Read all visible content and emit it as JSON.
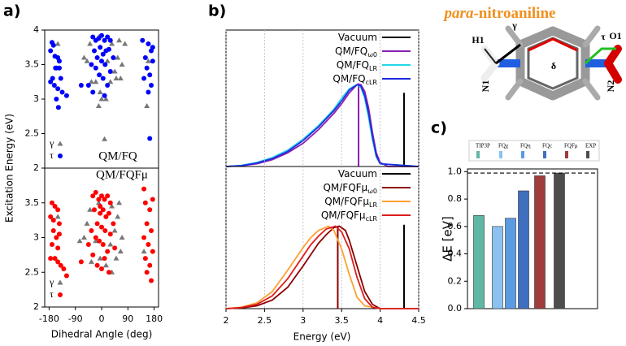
{
  "chart_data": [
    {
      "type": "scatter",
      "label": "a)",
      "ylabel": "Excitation Energy (eV)",
      "annotation": "QM/FQ",
      "annotation_color": "#0000ff",
      "xlim": [
        -195,
        195
      ],
      "ylim": [
        2,
        4
      ],
      "yticks": [
        2,
        2.5,
        3,
        3.5,
        4
      ],
      "legend": "lower left",
      "series": [
        {
          "name": "γ",
          "marker": "triangle",
          "color": "#777777",
          "x": [
            -10,
            35,
            60,
            80,
            55,
            70,
            45,
            -40,
            -50,
            -20,
            30,
            50,
            -5,
            15,
            -35,
            -10,
            10,
            0,
            -60,
            65,
            155,
            160,
            -150,
            20
          ],
          "values": [
            3.9,
            3.8,
            3.85,
            3.8,
            3.6,
            3.5,
            3.4,
            3.8,
            3.55,
            3.25,
            3.25,
            3.3,
            3.1,
            3.0,
            3.25,
            2.9,
            2.42,
            3.0,
            3.6,
            3.3,
            2.9,
            3.55,
            3.8,
            3.55
          ]
        },
        {
          "name": "τ",
          "marker": "circle",
          "color": "#0000ff",
          "x": [
            -170,
            -165,
            -160,
            -175,
            -150,
            -145,
            -155,
            -168,
            -162,
            -150,
            -140,
            -175,
            -155,
            -148,
            -135,
            -120,
            -158,
            -145,
            -30,
            -20,
            -10,
            0,
            10,
            20,
            30,
            -25,
            -5,
            5,
            15,
            25,
            -15,
            0,
            12,
            -20,
            30,
            -8,
            5,
            -35,
            40,
            -45,
            -70,
            20,
            -30,
            10,
            140,
            160,
            170,
            150,
            175,
            155,
            165,
            145,
            170,
            160,
            175,
            165
          ],
          "values": [
            3.82,
            3.78,
            3.62,
            3.7,
            3.6,
            3.45,
            3.45,
            3.3,
            3.2,
            3.15,
            3.3,
            3.25,
            3.0,
            2.88,
            3.1,
            3.05,
            3.45,
            3.55,
            3.9,
            3.85,
            3.88,
            3.92,
            3.85,
            3.9,
            3.85,
            3.7,
            3.75,
            3.65,
            3.7,
            3.72,
            3.6,
            3.55,
            3.5,
            3.45,
            3.4,
            3.35,
            3.3,
            3.5,
            3.6,
            3.2,
            3.2,
            3.2,
            3.1,
            3.05,
            3.85,
            3.8,
            3.7,
            3.6,
            3.55,
            3.45,
            3.35,
            3.3,
            3.2,
            3.1,
            3.75,
            2.43
          ]
        }
      ]
    },
    {
      "type": "scatter",
      "xlabel": "Dihedral Angle (deg)",
      "annotation": "QM/FQFμ",
      "annotation_color": "#ff0000",
      "xlim": [
        -195,
        195
      ],
      "xticks": [
        -180,
        -90,
        0,
        90,
        180
      ],
      "ylim": [
        2,
        4
      ],
      "yticks": [
        2,
        2.5,
        3,
        3.5
      ],
      "legend": "lower left",
      "series": [
        {
          "name": "γ",
          "marker": "triangle",
          "color": "#777777",
          "x": [
            -10,
            35,
            60,
            55,
            70,
            45,
            -40,
            -50,
            -20,
            30,
            50,
            -5,
            15,
            -35,
            -60,
            65,
            -75,
            35,
            145,
            -150
          ],
          "values": [
            3.5,
            3.45,
            3.5,
            3.3,
            3.0,
            3.1,
            3.4,
            3.2,
            2.95,
            2.9,
            2.7,
            2.7,
            2.6,
            2.65,
            3.0,
            2.8,
            2.95,
            2.5,
            2.8,
            3.3
          ]
        },
        {
          "name": "τ",
          "marker": "circle",
          "color": "#ff0000",
          "x": [
            -170,
            -160,
            -175,
            -150,
            -165,
            -155,
            -145,
            -170,
            -160,
            -150,
            -140,
            -130,
            -175,
            -150,
            -120,
            -145,
            -165,
            -30,
            -20,
            -10,
            0,
            10,
            20,
            30,
            -25,
            -5,
            5,
            15,
            25,
            -15,
            0,
            12,
            -20,
            30,
            -8,
            5,
            -35,
            40,
            -45,
            20,
            -30,
            10,
            0,
            -15,
            25,
            -70,
            45,
            -5,
            150,
            165,
            175,
            155,
            170,
            145,
            160,
            175,
            150,
            165,
            155,
            170,
            145
          ],
          "values": [
            3.5,
            3.45,
            3.3,
            3.4,
            3.1,
            3.0,
            3.05,
            2.9,
            2.7,
            2.65,
            2.6,
            2.55,
            2.7,
            2.85,
            2.45,
            3.2,
            3.25,
            3.6,
            3.65,
            3.55,
            3.6,
            3.55,
            3.6,
            3.5,
            3.4,
            3.35,
            3.4,
            3.3,
            3.35,
            3.2,
            3.15,
            3.1,
            3.0,
            3.05,
            2.95,
            2.9,
            3.1,
            3.2,
            2.9,
            2.8,
            2.75,
            2.7,
            2.55,
            2.6,
            2.5,
            2.65,
            2.85,
            3.45,
            3.5,
            3.4,
            3.55,
            3.2,
            3.1,
            3.0,
            2.9,
            2.8,
            2.7,
            2.6,
            2.5,
            2.38,
            3.7
          ]
        }
      ]
    },
    {
      "type": "line",
      "label": "b)",
      "xlim": [
        2,
        4.5
      ],
      "ylim": [
        0,
        1
      ],
      "grid": true,
      "series": [
        {
          "name": "Vacuum",
          "color": "#000000",
          "stick": {
            "x": 4.31,
            "value": 0.54
          }
        },
        {
          "name": "QM/FQ",
          "name_sub": "ω0",
          "color": "#8b1fb0",
          "x": [
            2.0,
            2.2,
            2.4,
            2.6,
            2.8,
            3.0,
            3.2,
            3.4,
            3.5,
            3.6,
            3.7,
            3.75,
            3.8,
            3.85,
            3.9,
            3.95,
            4.0,
            4.1,
            4.5
          ],
          "values": [
            0,
            0.005,
            0.02,
            0.05,
            0.1,
            0.17,
            0.27,
            0.39,
            0.46,
            0.54,
            0.6,
            0.6,
            0.55,
            0.43,
            0.25,
            0.1,
            0.03,
            0,
            0
          ],
          "stick": {
            "x": 3.72,
            "value": 0.61
          }
        },
        {
          "name": "QM/FQ",
          "name_sub": "LR",
          "color": "#22d8e8",
          "x": [
            2.0,
            2.2,
            2.4,
            2.6,
            2.8,
            3.0,
            3.2,
            3.4,
            3.5,
            3.6,
            3.7,
            3.75,
            3.8,
            3.85,
            3.9,
            3.95,
            4.0,
            4.5
          ],
          "values": [
            0,
            0.008,
            0.03,
            0.065,
            0.12,
            0.2,
            0.3,
            0.42,
            0.5,
            0.57,
            0.6,
            0.58,
            0.5,
            0.36,
            0.2,
            0.07,
            0.02,
            0
          ]
        },
        {
          "name": "QM/FQ",
          "name_sub": "cLR",
          "color": "#1f2be0",
          "x": [
            2.0,
            2.2,
            2.4,
            2.6,
            2.8,
            3.0,
            3.2,
            3.4,
            3.5,
            3.6,
            3.7,
            3.75,
            3.8,
            3.85,
            3.9,
            3.95,
            4.0,
            4.5
          ],
          "values": [
            0,
            0.006,
            0.025,
            0.058,
            0.11,
            0.19,
            0.29,
            0.41,
            0.48,
            0.56,
            0.6,
            0.59,
            0.52,
            0.39,
            0.22,
            0.08,
            0.02,
            0
          ]
        }
      ]
    },
    {
      "type": "line",
      "xlabel": "Energy (eV)",
      "xlim": [
        2,
        4.5
      ],
      "xticks": [
        2,
        2.5,
        3,
        3.5,
        4,
        4.5
      ],
      "ylim": [
        0,
        1
      ],
      "grid": true,
      "series": [
        {
          "name": "Vacuum",
          "color": "#000000",
          "stick": {
            "x": 4.31,
            "value": 0.59
          }
        },
        {
          "name": "QM/FQFμ",
          "name_sub": "ω0",
          "color": "#8b0000",
          "x": [
            2.0,
            2.2,
            2.4,
            2.6,
            2.8,
            3.0,
            3.1,
            3.2,
            3.3,
            3.4,
            3.47,
            3.55,
            3.6,
            3.7,
            3.8,
            3.9,
            4.0,
            4.5
          ],
          "values": [
            0,
            0.005,
            0.02,
            0.06,
            0.15,
            0.3,
            0.38,
            0.46,
            0.52,
            0.57,
            0.58,
            0.55,
            0.48,
            0.3,
            0.12,
            0.03,
            0,
            0
          ],
          "stick": {
            "x": 3.45,
            "value": 0.58
          }
        },
        {
          "name": "QM/FQFμ",
          "name_sub": "LR",
          "color": "#ffa030",
          "x": [
            2.0,
            2.2,
            2.4,
            2.6,
            2.8,
            3.0,
            3.1,
            3.2,
            3.33,
            3.4,
            3.5,
            3.6,
            3.7,
            3.8,
            4.0,
            4.5
          ],
          "values": [
            0,
            0.01,
            0.04,
            0.12,
            0.27,
            0.43,
            0.5,
            0.55,
            0.58,
            0.55,
            0.42,
            0.24,
            0.08,
            0.02,
            0,
            0
          ]
        },
        {
          "name": "QM/FQFμ",
          "name_sub": "cLR",
          "color": "#dd1c1c",
          "x": [
            2.0,
            2.2,
            2.4,
            2.6,
            2.8,
            3.0,
            3.1,
            3.2,
            3.3,
            3.42,
            3.5,
            3.6,
            3.7,
            3.8,
            3.9,
            4.0,
            4.5
          ],
          "values": [
            0,
            0.008,
            0.03,
            0.09,
            0.21,
            0.37,
            0.45,
            0.51,
            0.56,
            0.58,
            0.54,
            0.42,
            0.22,
            0.07,
            0.01,
            0,
            0
          ]
        }
      ]
    },
    {
      "type": "bar",
      "label": "c)",
      "ylabel": "ΔE [eV]",
      "categories": [
        "TIP3P",
        "FQχ",
        "FQη",
        "FQc",
        "FQFμ",
        "EXP"
      ],
      "values": [
        0.68,
        0.6,
        0.66,
        0.86,
        0.97,
        0.99
      ],
      "colors": [
        "#5fb8a4",
        "#8cc2f2",
        "#5b9be2",
        "#3f6fbf",
        "#a03c3c",
        "#4d4d4d"
      ],
      "ylim": [
        0,
        1.02
      ],
      "yticks": [
        {
          "value": 0,
          "label": "0.0"
        },
        {
          "value": 0.2,
          "label": "0.2"
        },
        {
          "value": 0.4,
          "label": "0.4"
        },
        {
          "value": 0.6,
          "label": "0.6"
        },
        {
          "value": 0.8,
          "label": "0.8"
        },
        {
          "value": 1,
          "label": "1.0"
        }
      ]
    }
  ],
  "molecule": {
    "title_italic": "para",
    "title_rest": "-nitroaniline",
    "title_color": "#f0901e",
    "labels": [
      "H1",
      "γ",
      "N1",
      "δ",
      "τ",
      "O1",
      "N2"
    ]
  }
}
